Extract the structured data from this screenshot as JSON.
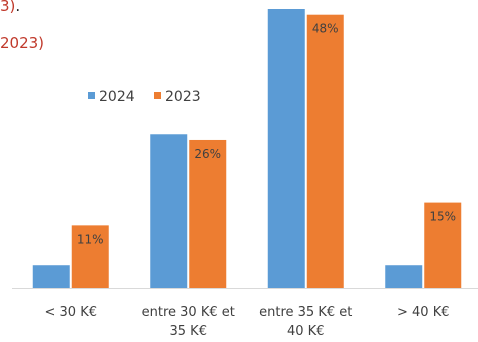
{
  "header": {
    "line1_partial": "3)",
    "line1_dot": ".",
    "line2_partial": "2023)"
  },
  "chart_data": {
    "type": "bar",
    "categories": [
      [
        "< 30 K€"
      ],
      [
        "entre 30 K€ et",
        "35 K€"
      ],
      [
        "entre 35 K€ et",
        "40 K€"
      ],
      [
        "> 40 K€"
      ]
    ],
    "series": [
      {
        "name": "2024",
        "color": "#5b9bd5",
        "values": [
          4,
          27,
          49,
          4
        ],
        "labels": [
          "",
          "",
          "",
          ""
        ]
      },
      {
        "name": "2023",
        "color": "#ed7d31",
        "values": [
          11,
          26,
          48,
          15
        ],
        "labels": [
          "11%",
          "26%",
          "48%",
          "15%"
        ]
      }
    ],
    "ylim": [
      0,
      49
    ],
    "legend": "top-center",
    "grid": false
  }
}
